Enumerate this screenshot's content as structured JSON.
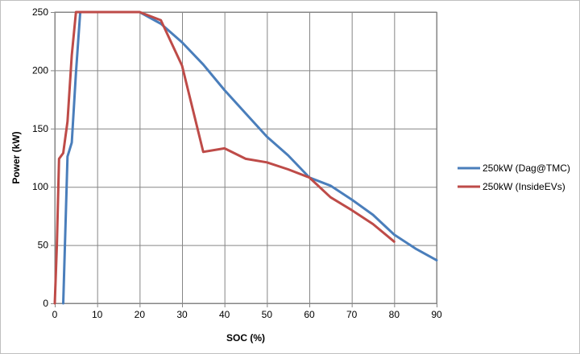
{
  "chart_data": {
    "type": "line",
    "title": "",
    "xlabel": "SOC (%)",
    "ylabel": "Power (kW)",
    "xlim": [
      0,
      90
    ],
    "ylim": [
      0,
      250
    ],
    "xticks": [
      0,
      10,
      20,
      30,
      40,
      50,
      60,
      70,
      80,
      90
    ],
    "yticks": [
      0,
      50,
      100,
      150,
      200,
      250
    ],
    "grid": true,
    "legend_position": "right",
    "series": [
      {
        "name": "250kW (Dag@TMC)",
        "color": "#4a7ebb",
        "x": [
          2,
          3,
          4,
          5,
          6,
          7,
          10,
          15,
          20,
          25,
          30,
          35,
          40,
          45,
          50,
          55,
          60,
          65,
          70,
          75,
          80,
          85,
          90
        ],
        "y": [
          0,
          126,
          138,
          198,
          250,
          250,
          250,
          250,
          250,
          240,
          224,
          205,
          183,
          163,
          143,
          127,
          108,
          101,
          89,
          76,
          59,
          47,
          37
        ]
      },
      {
        "name": "250kW (InsideEVs)",
        "color": "#be4b48",
        "x": [
          0,
          0.5,
          1,
          2,
          3,
          4,
          5,
          10,
          15,
          20,
          25,
          30,
          35,
          40,
          45,
          50,
          55,
          60,
          65,
          70,
          75,
          80
        ],
        "y": [
          0,
          50,
          124,
          129,
          156,
          213,
          250,
          250,
          250,
          250,
          243,
          204,
          130,
          133,
          124,
          121,
          115,
          108,
          91,
          80,
          68,
          53
        ]
      }
    ]
  }
}
